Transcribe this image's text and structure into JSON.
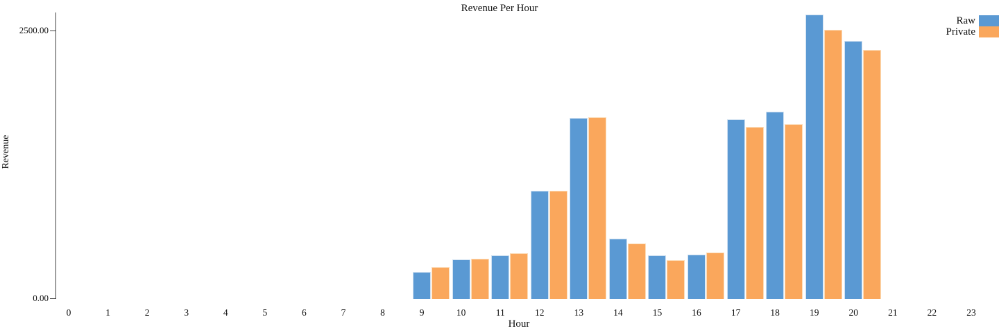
{
  "title": "Revenue Per Hour",
  "colors": {
    "raw": "#5A99D3",
    "private": "#FAA75C",
    "axis": "#3c3c3c",
    "text": "#111111"
  },
  "legend": {
    "position": "top-right",
    "items": [
      {
        "label": "Raw",
        "color": "#5A99D3"
      },
      {
        "label": "Private",
        "color": "#FAA75C"
      }
    ]
  },
  "axes": {
    "x_title": "Hour",
    "y_title": "Revenue",
    "y_tick_labels": {
      "zero": "0.00",
      "max": "2500.00"
    }
  },
  "chart_data": {
    "type": "bar",
    "title": "Revenue Per Hour",
    "xlabel": "Hour",
    "ylabel": "Revenue",
    "categories": [
      0,
      1,
      2,
      3,
      4,
      5,
      6,
      7,
      8,
      9,
      10,
      11,
      12,
      13,
      14,
      15,
      16,
      17,
      18,
      19,
      20,
      21,
      22,
      23
    ],
    "series": [
      {
        "name": "Raw",
        "color": "#5A99D3",
        "values": [
          0,
          0,
          0,
          0,
          0,
          0,
          0,
          0,
          0,
          255,
          365,
          405,
          1010,
          1685,
          560,
          405,
          415,
          1670,
          1745,
          2650,
          2405,
          0,
          0,
          0
        ]
      },
      {
        "name": "Private",
        "color": "#FAA75C",
        "values": [
          0,
          0,
          0,
          0,
          0,
          0,
          0,
          0,
          0,
          300,
          375,
          425,
          1005,
          1695,
          520,
          360,
          430,
          1605,
          1625,
          2505,
          2320,
          0,
          0,
          0
        ]
      }
    ],
    "ylim": [
      0,
      2670
    ],
    "yticks": [
      {
        "value": 0,
        "label": "0.00"
      },
      {
        "value": 2500,
        "label": "2500.00"
      }
    ],
    "grid": false,
    "legend_position": "top-right"
  }
}
